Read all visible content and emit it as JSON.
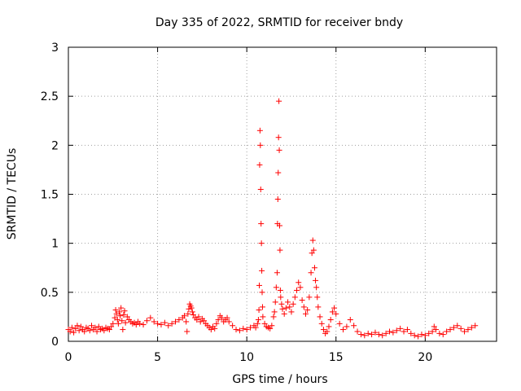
{
  "chart_data": {
    "type": "scatter",
    "title": "Day 335 of 2022, SRMTID for receiver bndy",
    "xlabel": "GPS time / hours",
    "ylabel": "SRMTID / TECUs",
    "xlim": [
      0,
      24
    ],
    "ylim": [
      0,
      3
    ],
    "grid": true,
    "marker": "+",
    "color": "#ff0000",
    "xticks": [
      {
        "value": 0,
        "label": "0"
      },
      {
        "value": 5,
        "label": "5"
      },
      {
        "value": 10,
        "label": "10"
      },
      {
        "value": 15,
        "label": "15"
      },
      {
        "value": 20,
        "label": "20"
      }
    ],
    "yticks": [
      {
        "value": 0,
        "label": "0"
      },
      {
        "value": 0.5,
        "label": "0.5"
      },
      {
        "value": 1,
        "label": "1"
      },
      {
        "value": 1.5,
        "label": "1.5"
      },
      {
        "value": 2,
        "label": "2"
      },
      {
        "value": 2.5,
        "label": "2.5"
      },
      {
        "value": 3,
        "label": "3"
      }
    ],
    "series": [
      {
        "name": "SRMTID",
        "points": [
          [
            0.0,
            0.12
          ],
          [
            0.1,
            0.1
          ],
          [
            0.2,
            0.14
          ],
          [
            0.3,
            0.09
          ],
          [
            0.4,
            0.13
          ],
          [
            0.5,
            0.16
          ],
          [
            0.6,
            0.11
          ],
          [
            0.7,
            0.15
          ],
          [
            0.8,
            0.12
          ],
          [
            0.9,
            0.1
          ],
          [
            1.0,
            0.14
          ],
          [
            1.1,
            0.13
          ],
          [
            1.2,
            0.11
          ],
          [
            1.3,
            0.16
          ],
          [
            1.4,
            0.12
          ],
          [
            1.5,
            0.14
          ],
          [
            1.6,
            0.1
          ],
          [
            1.7,
            0.15
          ],
          [
            1.8,
            0.12
          ],
          [
            1.9,
            0.13
          ],
          [
            2.0,
            0.11
          ],
          [
            2.1,
            0.14
          ],
          [
            2.2,
            0.13
          ],
          [
            2.3,
            0.12
          ],
          [
            2.4,
            0.15
          ],
          [
            2.5,
            0.18
          ],
          [
            2.6,
            0.24
          ],
          [
            2.65,
            0.32
          ],
          [
            2.7,
            0.28
          ],
          [
            2.75,
            0.22
          ],
          [
            2.8,
            0.18
          ],
          [
            2.85,
            0.3
          ],
          [
            2.9,
            0.26
          ],
          [
            2.95,
            0.34
          ],
          [
            3.0,
            0.21
          ],
          [
            3.05,
            0.12
          ],
          [
            3.1,
            0.27
          ],
          [
            3.15,
            0.31
          ],
          [
            3.2,
            0.19
          ],
          [
            3.3,
            0.25
          ],
          [
            3.4,
            0.22
          ],
          [
            3.5,
            0.2
          ],
          [
            3.6,
            0.18
          ],
          [
            3.7,
            0.19
          ],
          [
            3.8,
            0.17
          ],
          [
            3.9,
            0.2
          ],
          [
            4.0,
            0.18
          ],
          [
            4.2,
            0.17
          ],
          [
            4.4,
            0.21
          ],
          [
            4.6,
            0.24
          ],
          [
            4.8,
            0.2
          ],
          [
            5.0,
            0.18
          ],
          [
            5.2,
            0.17
          ],
          [
            5.4,
            0.19
          ],
          [
            5.6,
            0.16
          ],
          [
            5.8,
            0.18
          ],
          [
            6.0,
            0.2
          ],
          [
            6.2,
            0.22
          ],
          [
            6.4,
            0.24
          ],
          [
            6.5,
            0.26
          ],
          [
            6.6,
            0.2
          ],
          [
            6.65,
            0.1
          ],
          [
            6.7,
            0.28
          ],
          [
            6.75,
            0.33
          ],
          [
            6.8,
            0.38
          ],
          [
            6.85,
            0.36
          ],
          [
            6.9,
            0.34
          ],
          [
            6.95,
            0.3
          ],
          [
            7.0,
            0.27
          ],
          [
            7.1,
            0.24
          ],
          [
            7.2,
            0.22
          ],
          [
            7.3,
            0.25
          ],
          [
            7.4,
            0.2
          ],
          [
            7.5,
            0.23
          ],
          [
            7.6,
            0.21
          ],
          [
            7.7,
            0.18
          ],
          [
            7.8,
            0.16
          ],
          [
            7.9,
            0.14
          ],
          [
            8.0,
            0.12
          ],
          [
            8.1,
            0.15
          ],
          [
            8.2,
            0.13
          ],
          [
            8.3,
            0.18
          ],
          [
            8.4,
            0.22
          ],
          [
            8.5,
            0.26
          ],
          [
            8.6,
            0.24
          ],
          [
            8.7,
            0.2
          ],
          [
            8.8,
            0.22
          ],
          [
            8.9,
            0.24
          ],
          [
            9.0,
            0.2
          ],
          [
            9.2,
            0.16
          ],
          [
            9.4,
            0.12
          ],
          [
            9.6,
            0.11
          ],
          [
            9.8,
            0.13
          ],
          [
            10.0,
            0.12
          ],
          [
            10.2,
            0.14
          ],
          [
            10.4,
            0.16
          ],
          [
            10.5,
            0.14
          ],
          [
            10.6,
            0.18
          ],
          [
            10.65,
            0.22
          ],
          [
            10.68,
            0.32
          ],
          [
            10.7,
            0.57
          ],
          [
            10.72,
            1.8
          ],
          [
            10.74,
            2.15
          ],
          [
            10.76,
            2.0
          ],
          [
            10.78,
            1.55
          ],
          [
            10.8,
            1.2
          ],
          [
            10.82,
            1.0
          ],
          [
            10.84,
            0.72
          ],
          [
            10.86,
            0.5
          ],
          [
            10.88,
            0.35
          ],
          [
            10.9,
            0.25
          ],
          [
            11.0,
            0.18
          ],
          [
            11.1,
            0.15
          ],
          [
            11.2,
            0.14
          ],
          [
            11.3,
            0.13
          ],
          [
            11.4,
            0.16
          ],
          [
            11.5,
            0.25
          ],
          [
            11.55,
            0.3
          ],
          [
            11.6,
            0.4
          ],
          [
            11.65,
            0.55
          ],
          [
            11.7,
            0.7
          ],
          [
            11.72,
            1.2
          ],
          [
            11.74,
            1.45
          ],
          [
            11.76,
            1.72
          ],
          [
            11.78,
            2.08
          ],
          [
            11.8,
            2.45
          ],
          [
            11.82,
            1.95
          ],
          [
            11.84,
            1.18
          ],
          [
            11.86,
            0.93
          ],
          [
            11.88,
            0.52
          ],
          [
            11.9,
            0.45
          ],
          [
            11.95,
            0.38
          ],
          [
            12.0,
            0.33
          ],
          [
            12.1,
            0.28
          ],
          [
            12.2,
            0.34
          ],
          [
            12.3,
            0.4
          ],
          [
            12.4,
            0.35
          ],
          [
            12.5,
            0.3
          ],
          [
            12.6,
            0.38
          ],
          [
            12.7,
            0.45
          ],
          [
            12.8,
            0.52
          ],
          [
            12.9,
            0.6
          ],
          [
            13.0,
            0.55
          ],
          [
            13.1,
            0.42
          ],
          [
            13.2,
            0.35
          ],
          [
            13.3,
            0.28
          ],
          [
            13.4,
            0.32
          ],
          [
            13.5,
            0.45
          ],
          [
            13.6,
            0.7
          ],
          [
            13.65,
            0.9
          ],
          [
            13.7,
            1.03
          ],
          [
            13.75,
            0.93
          ],
          [
            13.8,
            0.75
          ],
          [
            13.85,
            0.62
          ],
          [
            13.9,
            0.55
          ],
          [
            13.95,
            0.45
          ],
          [
            14.0,
            0.35
          ],
          [
            14.1,
            0.25
          ],
          [
            14.2,
            0.18
          ],
          [
            14.3,
            0.12
          ],
          [
            14.4,
            0.08
          ],
          [
            14.5,
            0.1
          ],
          [
            14.6,
            0.15
          ],
          [
            14.7,
            0.22
          ],
          [
            14.8,
            0.3
          ],
          [
            14.9,
            0.34
          ],
          [
            15.0,
            0.28
          ],
          [
            15.2,
            0.18
          ],
          [
            15.4,
            0.12
          ],
          [
            15.6,
            0.15
          ],
          [
            15.8,
            0.22
          ],
          [
            16.0,
            0.16
          ],
          [
            16.2,
            0.1
          ],
          [
            16.4,
            0.07
          ],
          [
            16.6,
            0.06
          ],
          [
            16.8,
            0.08
          ],
          [
            17.0,
            0.07
          ],
          [
            17.2,
            0.09
          ],
          [
            17.4,
            0.07
          ],
          [
            17.6,
            0.06
          ],
          [
            17.8,
            0.08
          ],
          [
            18.0,
            0.1
          ],
          [
            18.2,
            0.09
          ],
          [
            18.4,
            0.11
          ],
          [
            18.6,
            0.13
          ],
          [
            18.8,
            0.1
          ],
          [
            19.0,
            0.12
          ],
          [
            19.2,
            0.08
          ],
          [
            19.4,
            0.06
          ],
          [
            19.6,
            0.05
          ],
          [
            19.8,
            0.07
          ],
          [
            20.0,
            0.06
          ],
          [
            20.2,
            0.08
          ],
          [
            20.4,
            0.1
          ],
          [
            20.5,
            0.15
          ],
          [
            20.6,
            0.12
          ],
          [
            20.8,
            0.08
          ],
          [
            21.0,
            0.07
          ],
          [
            21.2,
            0.1
          ],
          [
            21.4,
            0.12
          ],
          [
            21.6,
            0.14
          ],
          [
            21.8,
            0.16
          ],
          [
            22.0,
            0.13
          ],
          [
            22.2,
            0.1
          ],
          [
            22.4,
            0.12
          ],
          [
            22.6,
            0.14
          ],
          [
            22.8,
            0.16
          ]
        ]
      }
    ]
  }
}
